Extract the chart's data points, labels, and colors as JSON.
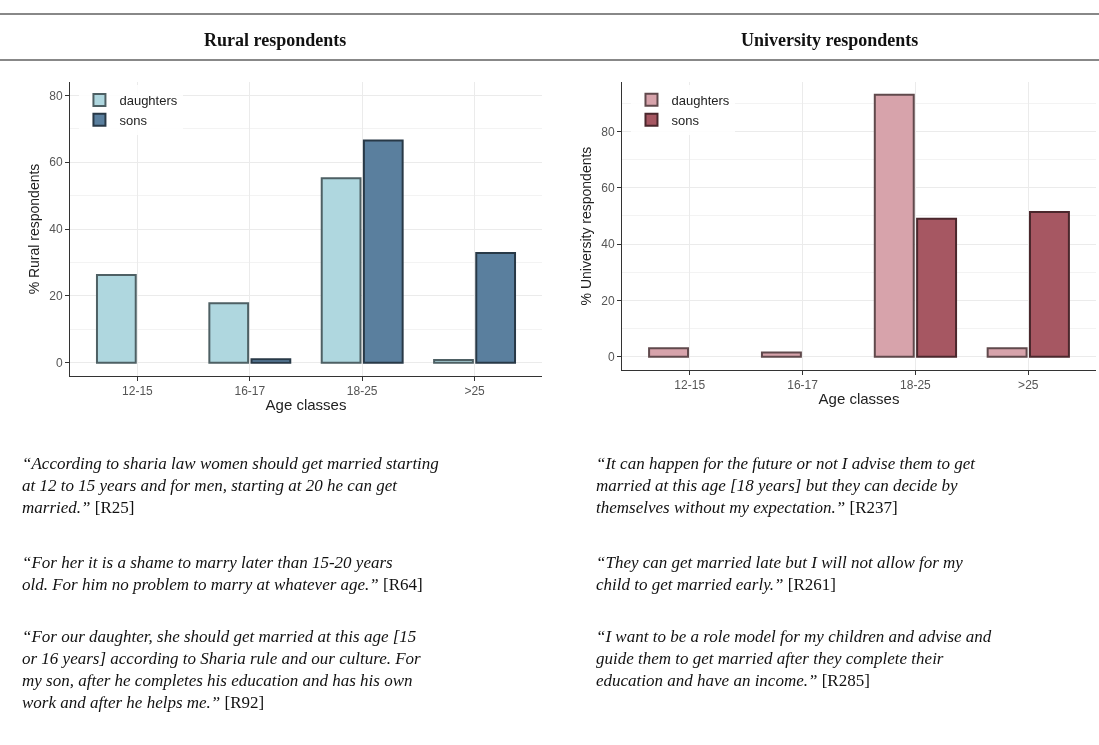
{
  "chart_data": [
    {
      "type": "bar",
      "title": "Rural respondents",
      "xlabel": "Age classes",
      "ylabel": "% Rural respondents",
      "categories": [
        "12-15",
        "16-17",
        "18-25",
        ">25"
      ],
      "series": [
        {
          "name": "daughters",
          "color": "#afd7df",
          "values": [
            26.2,
            17.8,
            55.2,
            0.8
          ]
        },
        {
          "name": "sons",
          "color": "#5a7f9e",
          "values": [
            null,
            1,
            66.5,
            32.8
          ]
        }
      ],
      "ylim": [
        -4,
        84
      ],
      "yticks": [
        0,
        20,
        40,
        60,
        80
      ],
      "grid": true,
      "legend": "top left",
      "annotations": [
        "“According to sharia law women should get married starting at 12 to 15 years and for men, starting at 20 he can get married.” [R25]",
        "“For her it is a shame to marry later than 15-20 years old. For him no problem to marry at whatever age.” [R64]",
        "“For our daughter, she should get married at this age [15 or 16 years] according to Sharia rule and our culture. For my son, after he completes his education and has his own work and after he helps me.” [R92]"
      ]
    },
    {
      "type": "bar",
      "title": "University respondents",
      "xlabel": "Age classes",
      "ylabel": "% University respondents",
      "categories": [
        "12-15",
        "16-17",
        "18-25",
        ">25"
      ],
      "series": [
        {
          "name": "daughters",
          "color": "#d7a3ab",
          "values": [
            3,
            1.5,
            93,
            3
          ]
        },
        {
          "name": "sons",
          "color": "#a65762",
          "values": [
            null,
            null,
            49,
            51.4
          ]
        }
      ],
      "ylim": [
        -4.7,
        97.5
      ],
      "yticks": [
        0,
        20,
        40,
        60,
        80
      ],
      "grid": true,
      "legend": "top left",
      "annotations": [
        "“It can happen for the future or not I advise them to get married at this age [18 years] but they can decide by themselves without my expectation.” [R237]",
        "“They can get married late but I will not allow for my child to get married early.” [R261]",
        "“I want to be a role model for my children and advise and guide them to get married after they complete their education and have an income.” [R285]"
      ]
    }
  ]
}
